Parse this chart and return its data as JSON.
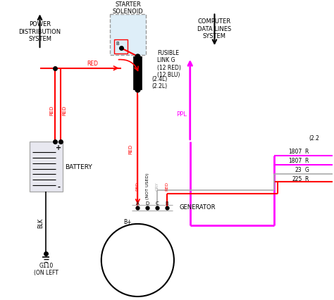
{
  "bg_color": "#ffffff",
  "colors": {
    "red": "#ff0000",
    "black": "#000000",
    "gray": "#aaaaaa",
    "light_blue": "#deeef8",
    "magenta": "#ff00ff",
    "white": "#ffffff",
    "light_gray": "#e8e8f0",
    "dashed_border": "#999999"
  },
  "labels": {
    "power_dist": "POWER\nDISTRIBUTION\nSYSTEM",
    "starter_solenoid": "STARTER\nSOLENOID",
    "computer": "COMPUTER\nDATA LINES\nSYSTEM",
    "fusible_link": "FUSIBLE\nLINK G\n(12 RED)\n(12 BLU)",
    "battery": "BATTERY",
    "blk": "BLK",
    "g110": "G110\n(ON LEFT",
    "generator": "GENERATOR",
    "b_plus": "B+",
    "ppl": "PPL",
    "label_24": "(2.4L)",
    "label_22": "(2.2L)",
    "label_22r": "(2.2",
    "conn_1807a": "1807",
    "conn_1807b": "1807",
    "conn_23": "23",
    "conn_225": "225"
  }
}
